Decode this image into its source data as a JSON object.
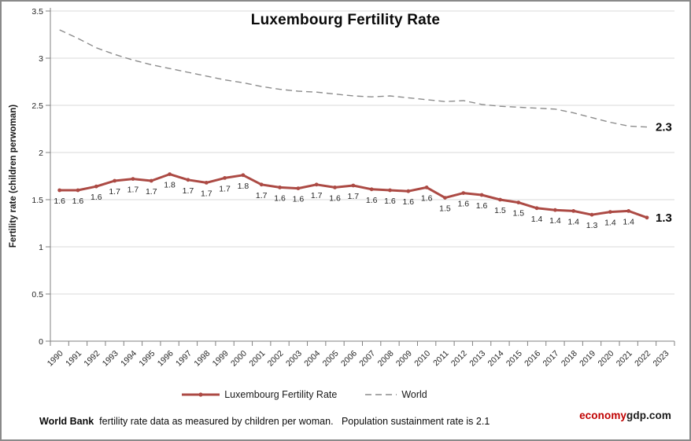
{
  "chart": {
    "title": "Luxembourg Fertility Rate",
    "y_axis_title": "Fertility rate (children perwoman)",
    "source_note": {
      "bold": "World Bank",
      "rest": "  fertility rate data as measured by children per woman.   Population sustainment rate is 2.1"
    },
    "brand": {
      "part1": "economy",
      "part2": "gdp.com",
      "part1_color": "#c00000",
      "part2_color": "#1a1a1a"
    }
  },
  "legend": {
    "items": [
      {
        "label": "Luxembourg Fertility Rate",
        "style": "solid-with-marker"
      },
      {
        "label": "World",
        "style": "dashed"
      }
    ]
  },
  "chart_data": {
    "type": "line",
    "title": "Luxembourg Fertility Rate",
    "xlabel": "",
    "ylabel": "Fertility rate (children perwoman)",
    "ylim": [
      0,
      3.5
    ],
    "grid": true,
    "legend_position": "bottom",
    "x_tick_labels": [
      "1990",
      "1991",
      "1992",
      "1993",
      "1994",
      "1995",
      "1996",
      "1997",
      "1998",
      "1999",
      "2000",
      "2001",
      "2002",
      "2003",
      "2004",
      "2005",
      "2006",
      "2007",
      "2008",
      "2009",
      "2010",
      "2011",
      "2012",
      "2013",
      "2014",
      "2015",
      "2016",
      "2017",
      "2018",
      "2019",
      "2020",
      "2021",
      "2022",
      "2023"
    ],
    "y_ticks": [
      0,
      0.5,
      1,
      1.5,
      2,
      2.5,
      3,
      3.5
    ],
    "y_tick_labels": [
      "0",
      "0.5",
      "1",
      "1.5",
      "2",
      "2.5",
      "3",
      "3.5"
    ],
    "colors": {
      "luxembourg_line": "#AC4A44",
      "world_line": "#8C8C8C",
      "gridline": "#D9D9D9",
      "axis": "#808080"
    },
    "series": [
      {
        "name": "Luxembourg Fertility Rate",
        "style": "solid",
        "color": "#AC4A44",
        "years": [
          1990,
          1991,
          1992,
          1993,
          1994,
          1995,
          1996,
          1997,
          1998,
          1999,
          2000,
          2001,
          2002,
          2003,
          2004,
          2005,
          2006,
          2007,
          2008,
          2009,
          2010,
          2011,
          2012,
          2013,
          2014,
          2015,
          2016,
          2017,
          2018,
          2019,
          2020,
          2021,
          2022
        ],
        "values": [
          1.6,
          1.6,
          1.64,
          1.7,
          1.72,
          1.7,
          1.77,
          1.71,
          1.68,
          1.73,
          1.76,
          1.66,
          1.63,
          1.62,
          1.66,
          1.63,
          1.65,
          1.61,
          1.6,
          1.59,
          1.63,
          1.52,
          1.57,
          1.55,
          1.5,
          1.47,
          1.41,
          1.39,
          1.38,
          1.34,
          1.37,
          1.38,
          1.31
        ],
        "point_labels": [
          "1.6",
          "1.6",
          "1.6",
          "1.7",
          "1.7",
          "1.7",
          "1.8",
          "1.7",
          "1.7",
          "1.7",
          "1.8",
          "1.7",
          "1.6",
          "1.6",
          "1.7",
          "1.6",
          "1.7",
          "1.6",
          "1.6",
          "1.6",
          "1.6",
          "1.5",
          "1.6",
          "1.6",
          "1.5",
          "1.5",
          "1.4",
          "1.4",
          "1.4",
          "1.3",
          "1.4",
          "1.4"
        ],
        "end_label": "1.3"
      },
      {
        "name": "World",
        "style": "dashed",
        "color": "#8C8C8C",
        "years": [
          1990,
          1991,
          1992,
          1993,
          1994,
          1995,
          1996,
          1997,
          1998,
          1999,
          2000,
          2001,
          2002,
          2003,
          2004,
          2005,
          2006,
          2007,
          2008,
          2009,
          2010,
          2011,
          2012,
          2013,
          2014,
          2015,
          2016,
          2017,
          2018,
          2019,
          2020,
          2021,
          2022
        ],
        "values": [
          3.3,
          3.21,
          3.11,
          3.04,
          2.98,
          2.93,
          2.89,
          2.85,
          2.81,
          2.77,
          2.74,
          2.7,
          2.67,
          2.65,
          2.64,
          2.62,
          2.6,
          2.59,
          2.6,
          2.58,
          2.56,
          2.54,
          2.55,
          2.51,
          2.49,
          2.48,
          2.47,
          2.46,
          2.42,
          2.37,
          2.32,
          2.28,
          2.27
        ],
        "end_label": "2.3"
      }
    ]
  }
}
